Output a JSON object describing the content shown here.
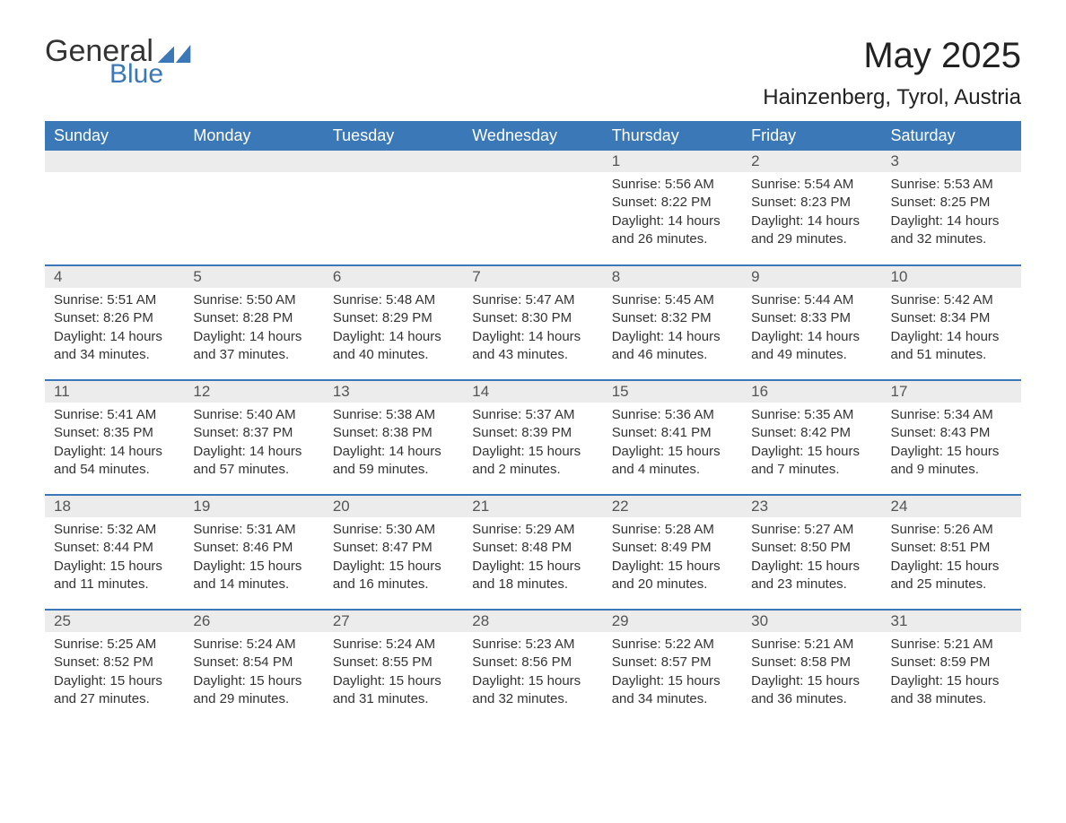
{
  "logo": {
    "word1": "General",
    "word2": "Blue",
    "icon_color": "#3b78b8"
  },
  "header": {
    "month_title": "May 2025",
    "location": "Hainzenberg, Tyrol, Austria"
  },
  "colors": {
    "header_bg": "#3b78b8",
    "header_text": "#ffffff",
    "daynum_bg": "#ececec",
    "border": "#3b78b8",
    "text": "#333333"
  },
  "day_headers": [
    "Sunday",
    "Monday",
    "Tuesday",
    "Wednesday",
    "Thursday",
    "Friday",
    "Saturday"
  ],
  "weeks": [
    [
      {
        "day": "",
        "sunrise": "",
        "sunset": "",
        "daylight1": "",
        "daylight2": ""
      },
      {
        "day": "",
        "sunrise": "",
        "sunset": "",
        "daylight1": "",
        "daylight2": ""
      },
      {
        "day": "",
        "sunrise": "",
        "sunset": "",
        "daylight1": "",
        "daylight2": ""
      },
      {
        "day": "",
        "sunrise": "",
        "sunset": "",
        "daylight1": "",
        "daylight2": ""
      },
      {
        "day": "1",
        "sunrise": "Sunrise: 5:56 AM",
        "sunset": "Sunset: 8:22 PM",
        "daylight1": "Daylight: 14 hours",
        "daylight2": "and 26 minutes."
      },
      {
        "day": "2",
        "sunrise": "Sunrise: 5:54 AM",
        "sunset": "Sunset: 8:23 PM",
        "daylight1": "Daylight: 14 hours",
        "daylight2": "and 29 minutes."
      },
      {
        "day": "3",
        "sunrise": "Sunrise: 5:53 AM",
        "sunset": "Sunset: 8:25 PM",
        "daylight1": "Daylight: 14 hours",
        "daylight2": "and 32 minutes."
      }
    ],
    [
      {
        "day": "4",
        "sunrise": "Sunrise: 5:51 AM",
        "sunset": "Sunset: 8:26 PM",
        "daylight1": "Daylight: 14 hours",
        "daylight2": "and 34 minutes."
      },
      {
        "day": "5",
        "sunrise": "Sunrise: 5:50 AM",
        "sunset": "Sunset: 8:28 PM",
        "daylight1": "Daylight: 14 hours",
        "daylight2": "and 37 minutes."
      },
      {
        "day": "6",
        "sunrise": "Sunrise: 5:48 AM",
        "sunset": "Sunset: 8:29 PM",
        "daylight1": "Daylight: 14 hours",
        "daylight2": "and 40 minutes."
      },
      {
        "day": "7",
        "sunrise": "Sunrise: 5:47 AM",
        "sunset": "Sunset: 8:30 PM",
        "daylight1": "Daylight: 14 hours",
        "daylight2": "and 43 minutes."
      },
      {
        "day": "8",
        "sunrise": "Sunrise: 5:45 AM",
        "sunset": "Sunset: 8:32 PM",
        "daylight1": "Daylight: 14 hours",
        "daylight2": "and 46 minutes."
      },
      {
        "day": "9",
        "sunrise": "Sunrise: 5:44 AM",
        "sunset": "Sunset: 8:33 PM",
        "daylight1": "Daylight: 14 hours",
        "daylight2": "and 49 minutes."
      },
      {
        "day": "10",
        "sunrise": "Sunrise: 5:42 AM",
        "sunset": "Sunset: 8:34 PM",
        "daylight1": "Daylight: 14 hours",
        "daylight2": "and 51 minutes."
      }
    ],
    [
      {
        "day": "11",
        "sunrise": "Sunrise: 5:41 AM",
        "sunset": "Sunset: 8:35 PM",
        "daylight1": "Daylight: 14 hours",
        "daylight2": "and 54 minutes."
      },
      {
        "day": "12",
        "sunrise": "Sunrise: 5:40 AM",
        "sunset": "Sunset: 8:37 PM",
        "daylight1": "Daylight: 14 hours",
        "daylight2": "and 57 minutes."
      },
      {
        "day": "13",
        "sunrise": "Sunrise: 5:38 AM",
        "sunset": "Sunset: 8:38 PM",
        "daylight1": "Daylight: 14 hours",
        "daylight2": "and 59 minutes."
      },
      {
        "day": "14",
        "sunrise": "Sunrise: 5:37 AM",
        "sunset": "Sunset: 8:39 PM",
        "daylight1": "Daylight: 15 hours",
        "daylight2": "and 2 minutes."
      },
      {
        "day": "15",
        "sunrise": "Sunrise: 5:36 AM",
        "sunset": "Sunset: 8:41 PM",
        "daylight1": "Daylight: 15 hours",
        "daylight2": "and 4 minutes."
      },
      {
        "day": "16",
        "sunrise": "Sunrise: 5:35 AM",
        "sunset": "Sunset: 8:42 PM",
        "daylight1": "Daylight: 15 hours",
        "daylight2": "and 7 minutes."
      },
      {
        "day": "17",
        "sunrise": "Sunrise: 5:34 AM",
        "sunset": "Sunset: 8:43 PM",
        "daylight1": "Daylight: 15 hours",
        "daylight2": "and 9 minutes."
      }
    ],
    [
      {
        "day": "18",
        "sunrise": "Sunrise: 5:32 AM",
        "sunset": "Sunset: 8:44 PM",
        "daylight1": "Daylight: 15 hours",
        "daylight2": "and 11 minutes."
      },
      {
        "day": "19",
        "sunrise": "Sunrise: 5:31 AM",
        "sunset": "Sunset: 8:46 PM",
        "daylight1": "Daylight: 15 hours",
        "daylight2": "and 14 minutes."
      },
      {
        "day": "20",
        "sunrise": "Sunrise: 5:30 AM",
        "sunset": "Sunset: 8:47 PM",
        "daylight1": "Daylight: 15 hours",
        "daylight2": "and 16 minutes."
      },
      {
        "day": "21",
        "sunrise": "Sunrise: 5:29 AM",
        "sunset": "Sunset: 8:48 PM",
        "daylight1": "Daylight: 15 hours",
        "daylight2": "and 18 minutes."
      },
      {
        "day": "22",
        "sunrise": "Sunrise: 5:28 AM",
        "sunset": "Sunset: 8:49 PM",
        "daylight1": "Daylight: 15 hours",
        "daylight2": "and 20 minutes."
      },
      {
        "day": "23",
        "sunrise": "Sunrise: 5:27 AM",
        "sunset": "Sunset: 8:50 PM",
        "daylight1": "Daylight: 15 hours",
        "daylight2": "and 23 minutes."
      },
      {
        "day": "24",
        "sunrise": "Sunrise: 5:26 AM",
        "sunset": "Sunset: 8:51 PM",
        "daylight1": "Daylight: 15 hours",
        "daylight2": "and 25 minutes."
      }
    ],
    [
      {
        "day": "25",
        "sunrise": "Sunrise: 5:25 AM",
        "sunset": "Sunset: 8:52 PM",
        "daylight1": "Daylight: 15 hours",
        "daylight2": "and 27 minutes."
      },
      {
        "day": "26",
        "sunrise": "Sunrise: 5:24 AM",
        "sunset": "Sunset: 8:54 PM",
        "daylight1": "Daylight: 15 hours",
        "daylight2": "and 29 minutes."
      },
      {
        "day": "27",
        "sunrise": "Sunrise: 5:24 AM",
        "sunset": "Sunset: 8:55 PM",
        "daylight1": "Daylight: 15 hours",
        "daylight2": "and 31 minutes."
      },
      {
        "day": "28",
        "sunrise": "Sunrise: 5:23 AM",
        "sunset": "Sunset: 8:56 PM",
        "daylight1": "Daylight: 15 hours",
        "daylight2": "and 32 minutes."
      },
      {
        "day": "29",
        "sunrise": "Sunrise: 5:22 AM",
        "sunset": "Sunset: 8:57 PM",
        "daylight1": "Daylight: 15 hours",
        "daylight2": "and 34 minutes."
      },
      {
        "day": "30",
        "sunrise": "Sunrise: 5:21 AM",
        "sunset": "Sunset: 8:58 PM",
        "daylight1": "Daylight: 15 hours",
        "daylight2": "and 36 minutes."
      },
      {
        "day": "31",
        "sunrise": "Sunrise: 5:21 AM",
        "sunset": "Sunset: 8:59 PM",
        "daylight1": "Daylight: 15 hours",
        "daylight2": "and 38 minutes."
      }
    ]
  ]
}
